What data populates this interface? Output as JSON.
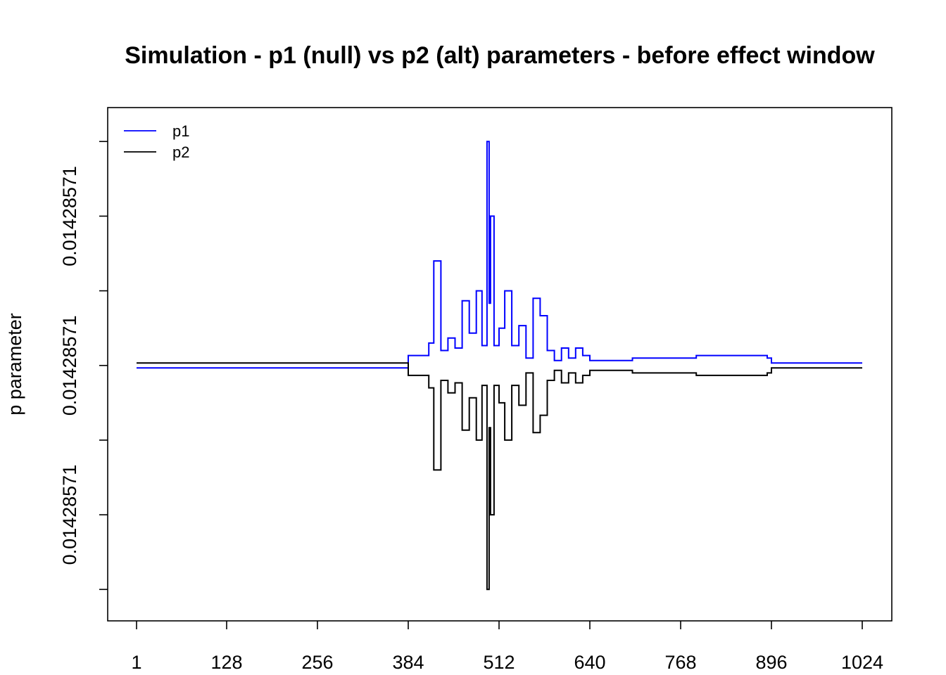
{
  "chart_data": {
    "type": "line",
    "title": "Simulation - p1 (null) vs p2 (alt) parameters - before effect window",
    "xlabel": "",
    "ylabel": "p parameter",
    "x_ticks": [
      "1",
      "128",
      "256",
      "384",
      "512",
      "640",
      "768",
      "896",
      "1024"
    ],
    "x_tick_values": [
      1,
      128,
      256,
      384,
      512,
      640,
      768,
      896,
      1024
    ],
    "y_tick_labels": [
      "0.01428571",
      "0.01428571",
      "0.01428571"
    ],
    "y_tick_values": [
      -0.0006,
      0.0,
      0.0006
    ],
    "y_minor_tick_values": [
      -0.0009,
      -0.0003,
      0.0003,
      0.0009
    ],
    "xlim": [
      1,
      1024
    ],
    "ylim": [
      -0.00095,
      0.00096
    ],
    "grid": false,
    "legend": {
      "position": "top-left",
      "entries": [
        {
          "label": "p1",
          "color": "#0000ff"
        },
        {
          "label": "p2",
          "color": "#000000"
        }
      ]
    },
    "series": [
      {
        "name": "p1",
        "color": "#0000ff",
        "x": [
          1,
          128,
          256,
          383,
          384,
          412,
          413,
          420,
          430,
          440,
          450,
          460,
          470,
          480,
          488,
          495,
          498,
          500,
          505,
          512,
          520,
          530,
          540,
          550,
          560,
          570,
          580,
          590,
          600,
          610,
          620,
          630,
          640,
          650,
          700,
          760,
          790,
          830,
          870,
          890,
          896,
          950,
          1024
        ],
        "values": [
          -1e-05,
          -1e-05,
          -1e-05,
          -1e-05,
          4e-05,
          4e-05,
          9e-05,
          0.00042,
          6e-05,
          0.00011,
          7e-05,
          0.00026,
          0.00013,
          0.0003,
          8e-05,
          0.0009,
          0.00025,
          0.0006,
          8e-05,
          0.00015,
          0.0003,
          8e-05,
          0.00016,
          3e-05,
          0.00027,
          0.0002,
          6e-05,
          2e-05,
          7e-05,
          3e-05,
          7e-05,
          4e-05,
          2e-05,
          2e-05,
          3e-05,
          3e-05,
          4e-05,
          4e-05,
          4e-05,
          3e-05,
          1e-05,
          1e-05,
          1e-05
        ]
      },
      {
        "name": "p2",
        "color": "#000000",
        "x": [
          1,
          128,
          256,
          383,
          384,
          412,
          413,
          420,
          430,
          440,
          450,
          460,
          470,
          480,
          488,
          495,
          498,
          500,
          505,
          512,
          520,
          530,
          540,
          550,
          560,
          570,
          580,
          590,
          600,
          610,
          620,
          630,
          640,
          650,
          700,
          760,
          790,
          830,
          870,
          890,
          896,
          950,
          1024
        ],
        "values": [
          1e-05,
          1e-05,
          1e-05,
          1e-05,
          -4e-05,
          -4e-05,
          -9e-05,
          -0.00042,
          -6e-05,
          -0.00011,
          -7e-05,
          -0.00026,
          -0.00013,
          -0.0003,
          -8e-05,
          -0.0009,
          -0.00025,
          -0.0006,
          -8e-05,
          -0.00015,
          -0.0003,
          -8e-05,
          -0.00016,
          -3e-05,
          -0.00027,
          -0.0002,
          -6e-05,
          -2e-05,
          -7e-05,
          -3e-05,
          -7e-05,
          -4e-05,
          -2e-05,
          -2e-05,
          -3e-05,
          -3e-05,
          -4e-05,
          -4e-05,
          -4e-05,
          -3e-05,
          -1e-05,
          -1e-05,
          -1e-05
        ]
      }
    ]
  }
}
